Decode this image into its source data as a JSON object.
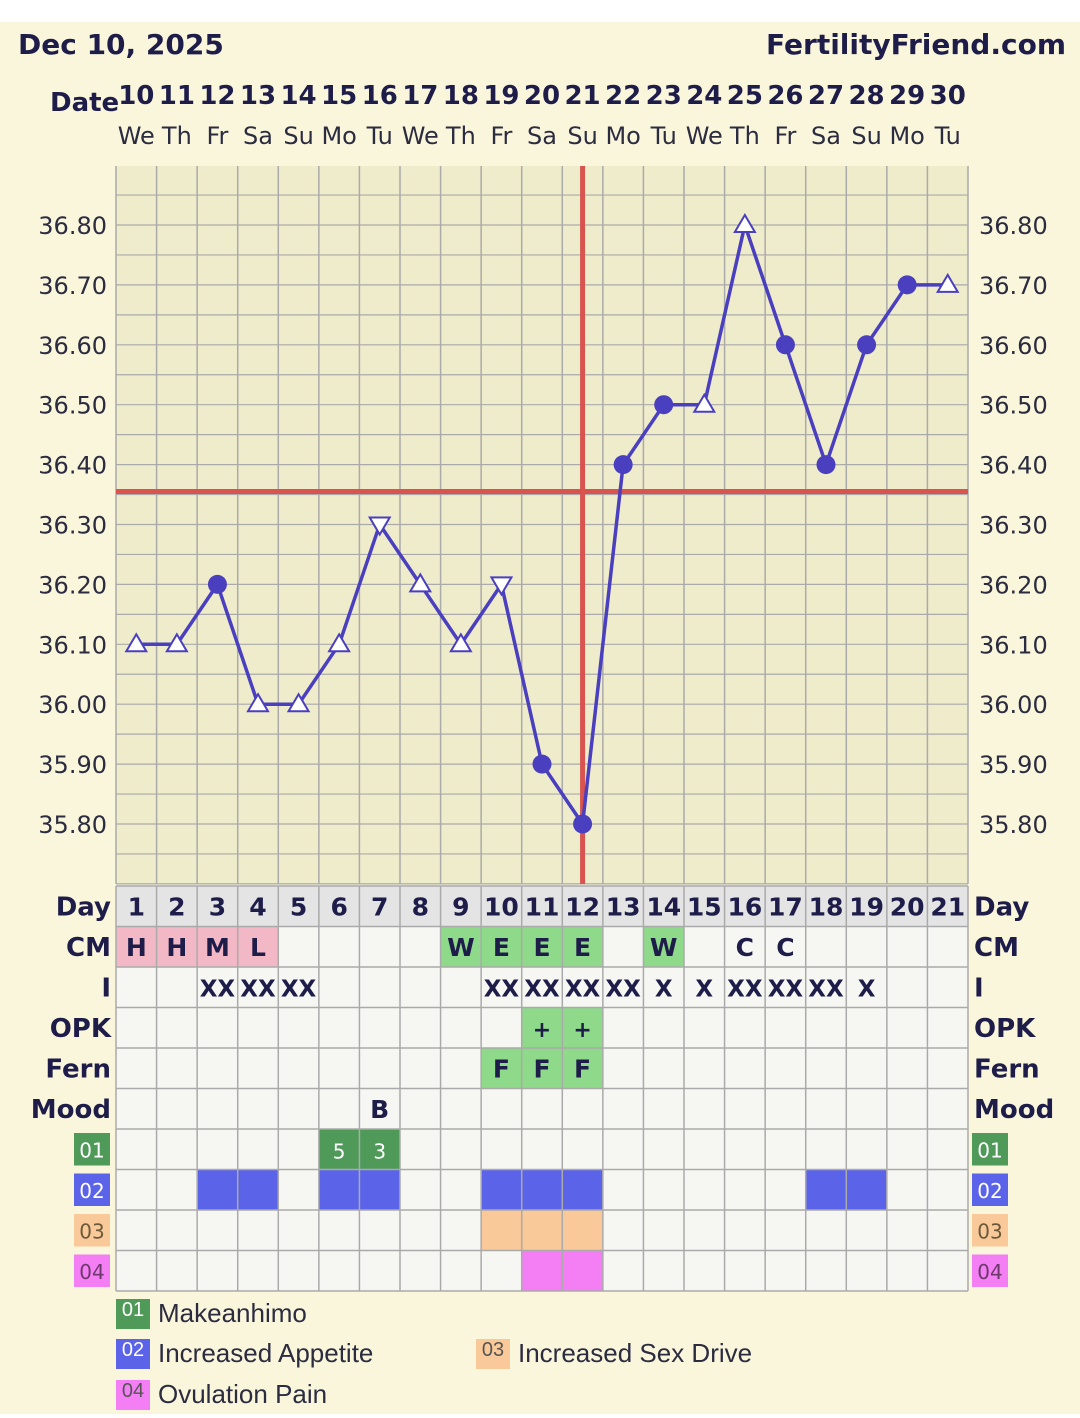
{
  "header": {
    "date": "Dec 10, 2025",
    "site": "FertilityFriend.com",
    "date_label": "Date"
  },
  "colors": {
    "line": "#4a3fbf",
    "cover": "#d9534f",
    "cm_pink": "#f2b8c6",
    "green": "#8fd98a",
    "sym01": "#4f9a59",
    "sym02": "#5b63e8",
    "sym03": "#f9c999",
    "sym04": "#f47ef4",
    "grid": "#aaaaaa",
    "background": "#faf6dc"
  },
  "chart_data": {
    "type": "line",
    "x": [
      "10",
      "11",
      "12",
      "13",
      "14",
      "15",
      "16",
      "17",
      "18",
      "19",
      "20",
      "21",
      "22",
      "23",
      "24",
      "25",
      "26",
      "27",
      "28",
      "29",
      "30"
    ],
    "weekdays": [
      "We",
      "Th",
      "Fr",
      "Sa",
      "Su",
      "Mo",
      "Tu",
      "We",
      "Th",
      "Fr",
      "Sa",
      "Su",
      "Mo",
      "Tu",
      "We",
      "Th",
      "Fr",
      "Sa",
      "Su",
      "Mo",
      "Tu"
    ],
    "series": [
      {
        "values": [
          36.1,
          36.1,
          36.2,
          36.0,
          36.0,
          36.1,
          36.3,
          36.2,
          36.1,
          36.2,
          35.9,
          35.8,
          36.4,
          36.5,
          36.5,
          36.8,
          36.6,
          36.4,
          36.6,
          36.7,
          36.7
        ],
        "markers": [
          "up",
          "up",
          "dot",
          "up",
          "up",
          "up",
          "down",
          "up",
          "up",
          "down",
          "dot",
          "dot",
          "dot",
          "dot",
          "up",
          "up",
          "dot",
          "dot",
          "dot",
          "dot",
          "up"
        ]
      }
    ],
    "y_ticks": [
      "36.80",
      "36.70",
      "36.60",
      "36.50",
      "36.40",
      "36.30",
      "36.20",
      "36.10",
      "36.00",
      "35.90",
      "35.80"
    ],
    "ylim": [
      35.75,
      36.85
    ],
    "coverline": 36.355,
    "ovulation_day": 12,
    "grid": true
  },
  "rows": {
    "day_label": "Day",
    "days": [
      "1",
      "2",
      "3",
      "4",
      "5",
      "6",
      "7",
      "8",
      "9",
      "10",
      "11",
      "12",
      "13",
      "14",
      "15",
      "16",
      "17",
      "18",
      "19",
      "20",
      "21"
    ],
    "cm_label": "CM",
    "cm": [
      [
        "H",
        "pink"
      ],
      [
        "H",
        "pink"
      ],
      [
        "M",
        "pink"
      ],
      [
        "L",
        "pink"
      ],
      [
        "",
        ""
      ],
      [
        "",
        ""
      ],
      [
        "",
        ""
      ],
      [
        "",
        ""
      ],
      [
        "W",
        "green"
      ],
      [
        "E",
        "green"
      ],
      [
        "E",
        "green"
      ],
      [
        "E",
        "green"
      ],
      [
        "",
        ""
      ],
      [
        "W",
        "green"
      ],
      [
        "",
        ""
      ],
      [
        "C",
        ""
      ],
      [
        "C",
        ""
      ],
      [
        "",
        ""
      ],
      [
        "",
        ""
      ],
      [
        "",
        ""
      ],
      [
        "",
        ""
      ]
    ],
    "i_label": "I",
    "i": [
      "",
      "",
      "XX",
      "XX",
      "XX",
      "",
      "",
      "",
      "",
      "XX",
      "XX",
      "XX",
      "XX",
      "X",
      "X",
      "XX",
      "XX",
      "XX",
      "X",
      "",
      ""
    ],
    "opk_label": "OPK",
    "opk": [
      "",
      "",
      "",
      "",
      "",
      "",
      "",
      "",
      "",
      "",
      "+",
      "+",
      "",
      "",
      "",
      "",
      "",
      "",
      "",
      "",
      ""
    ],
    "fern_label": "Fern",
    "fern": [
      "",
      "",
      "",
      "",
      "",
      "",
      "",
      "",
      "",
      "F",
      "F",
      "F",
      "",
      "",
      "",
      "",
      "",
      "",
      "",
      "",
      ""
    ],
    "mood_label": "Mood",
    "mood": [
      "",
      "",
      "",
      "",
      "",
      "",
      "B",
      "",
      "",
      "",
      "",
      "",
      "",
      "",
      "",
      "",
      "",
      "",
      "",
      "",
      ""
    ],
    "sym01_label": "01",
    "sym01": [
      "",
      "",
      "",
      "",
      "",
      "5",
      "3",
      "",
      "",
      "",
      "",
      "",
      "",
      "",
      "",
      "",
      "",
      "",
      "",
      "",
      ""
    ],
    "sym01_marks": [
      6,
      7
    ],
    "sym02_label": "02",
    "sym02_marks": [
      3,
      4,
      6,
      7,
      10,
      11,
      12,
      18,
      19
    ],
    "sym03_label": "03",
    "sym03_marks": [
      10,
      11,
      12
    ],
    "sym04_label": "04",
    "sym04_marks": [
      11,
      12
    ]
  },
  "legend": [
    {
      "code": "01",
      "text": "Makeanhimo"
    },
    {
      "code": "02",
      "text": "Increased Appetite"
    },
    {
      "code": "03",
      "text": "Increased Sex Drive"
    },
    {
      "code": "04",
      "text": "Ovulation Pain"
    }
  ]
}
